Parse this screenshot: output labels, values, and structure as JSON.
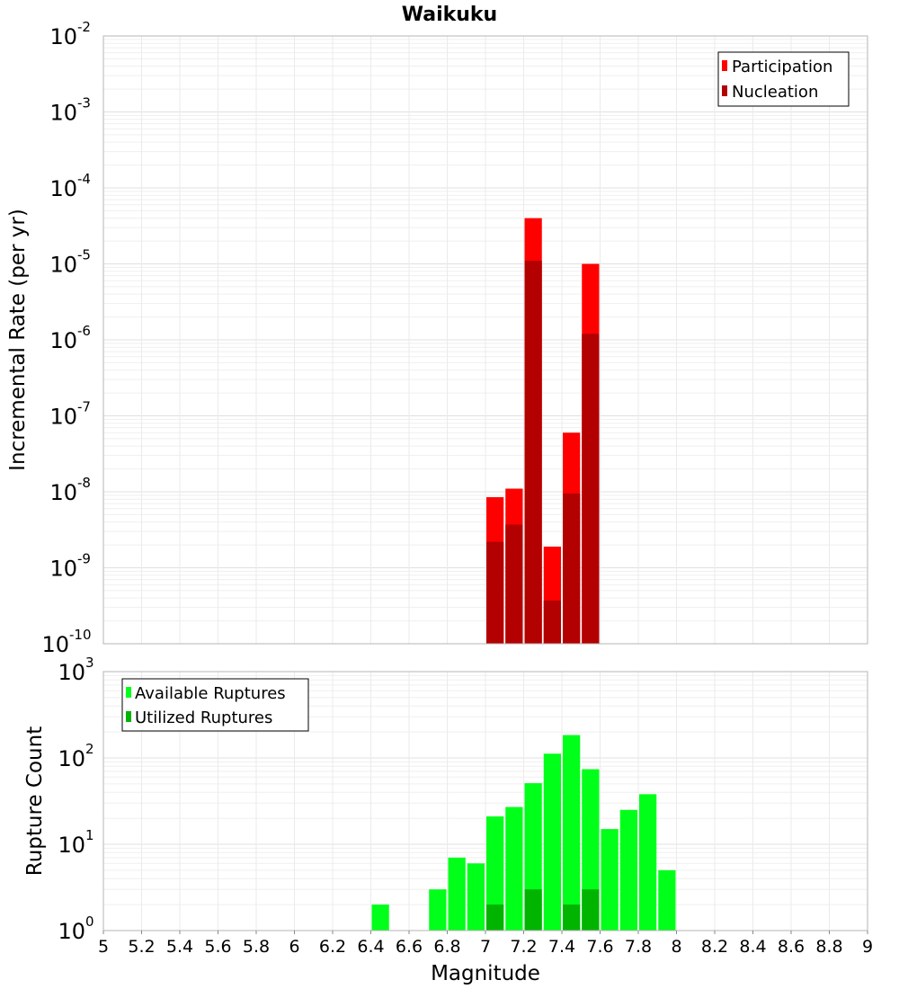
{
  "chart_data": [
    {
      "type": "bar",
      "title": "Waikuku",
      "xlabel": "",
      "ylabel": "Incremental Rate (per yr)",
      "yscale": "log",
      "ylim_exponents": [
        -10,
        -2
      ],
      "xlim": [
        5,
        9
      ],
      "bin_width": 0.1,
      "legend_position": "top-right",
      "series": [
        {
          "name": "Participation",
          "color": "#ff0000",
          "bins": [
            7.0,
            7.1,
            7.2,
            7.3,
            7.4,
            7.5
          ],
          "values": [
            8.5e-09,
            1.1e-08,
            4e-05,
            1.9e-09,
            6e-08,
            1e-05
          ]
        },
        {
          "name": "Nucleation",
          "color": "#b30000",
          "bins": [
            7.0,
            7.1,
            7.2,
            7.3,
            7.4,
            7.5
          ],
          "values": [
            2.2e-09,
            3.7e-09,
            1.1e-05,
            3.7e-10,
            9.5e-09,
            1.2e-06
          ]
        }
      ]
    },
    {
      "type": "bar",
      "title": "",
      "xlabel": "Magnitude",
      "ylabel": "Rupture Count",
      "yscale": "log",
      "ylim_exponents": [
        0,
        3
      ],
      "xlim": [
        5,
        9
      ],
      "bin_width": 0.1,
      "legend_position": "top-left",
      "x_ticks": [
        "5",
        "5.2",
        "5.4",
        "5.6",
        "5.8",
        "6",
        "6.2",
        "6.4",
        "6.6",
        "6.8",
        "7",
        "7.2",
        "7.4",
        "7.6",
        "7.8",
        "8",
        "8.2",
        "8.4",
        "8.6",
        "8.8",
        "9"
      ],
      "series": [
        {
          "name": "Available Ruptures",
          "color": "#00ff19",
          "bins": [
            6.4,
            6.6,
            6.7,
            6.8,
            6.9,
            7.0,
            7.1,
            7.2,
            7.3,
            7.4,
            7.5,
            7.6,
            7.7,
            7.8,
            7.9
          ],
          "values": [
            2,
            1,
            3,
            7,
            6,
            21,
            27,
            51,
            112,
            184,
            74,
            15,
            25,
            38,
            5
          ]
        },
        {
          "name": "Utilized Ruptures",
          "color": "#00b400",
          "bins": [
            7.0,
            7.1,
            7.2,
            7.3,
            7.4,
            7.5
          ],
          "values": [
            2,
            1,
            3,
            1,
            2,
            3
          ]
        }
      ]
    }
  ]
}
